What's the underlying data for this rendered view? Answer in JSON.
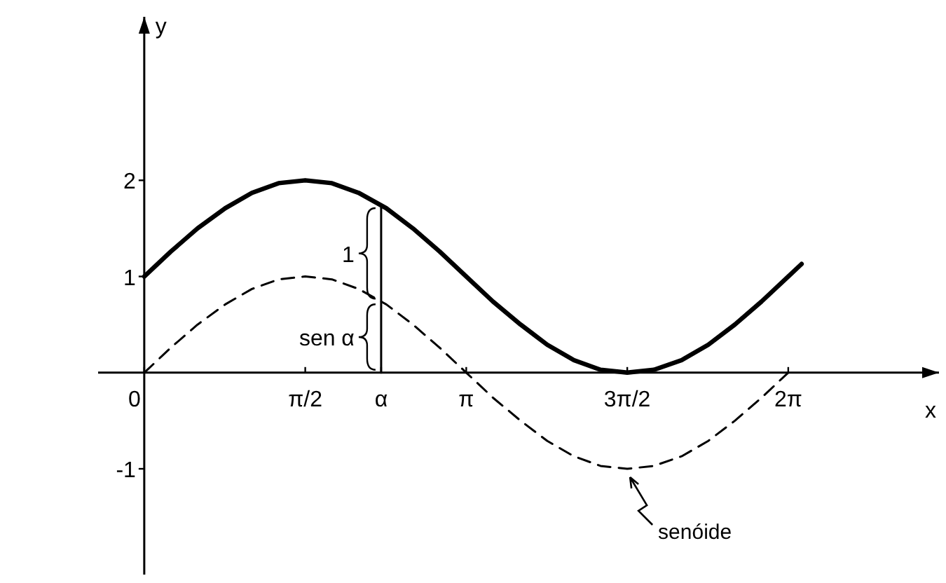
{
  "chart_data": {
    "type": "line",
    "xlabel": "x",
    "ylabel": "y",
    "xlim": [
      -0.45,
      7.75
    ],
    "ylim": [
      -2.1,
      3.7
    ],
    "xticks": [
      {
        "value": 0,
        "label": "0"
      },
      {
        "value": 1.57,
        "label": "π/2"
      },
      {
        "value": 2.31,
        "label": "α"
      },
      {
        "value": 3.14,
        "label": "π"
      },
      {
        "value": 4.71,
        "label": "3π/2"
      },
      {
        "value": 6.28,
        "label": "2π"
      }
    ],
    "yticks": [
      -1,
      1,
      2
    ],
    "grid": false,
    "marker": "none",
    "series": [
      {
        "color": "#000000",
        "line_style": "solid",
        "x": [
          0,
          0.26,
          0.52,
          0.79,
          1.05,
          1.31,
          1.57,
          1.83,
          2.09,
          2.36,
          2.62,
          2.88,
          3.14,
          3.4,
          3.67,
          3.93,
          4.19,
          4.45,
          4.71,
          4.97,
          5.24,
          5.5,
          5.76,
          6.02,
          6.28,
          6.41
        ],
        "values": [
          1,
          1.26,
          1.5,
          1.71,
          1.87,
          1.97,
          2,
          1.97,
          1.87,
          1.71,
          1.5,
          1.26,
          1,
          0.74,
          0.5,
          0.29,
          0.13,
          0.03,
          0,
          0.03,
          0.13,
          0.29,
          0.5,
          0.74,
          1,
          1.13
        ]
      },
      {
        "color": "#000000",
        "line_style": "dashed",
        "x": [
          0,
          0.26,
          0.52,
          0.79,
          1.05,
          1.31,
          1.57,
          1.83,
          2.09,
          2.36,
          2.62,
          2.88,
          3.14,
          3.4,
          3.67,
          3.93,
          4.19,
          4.45,
          4.71,
          4.97,
          5.24,
          5.5,
          5.76,
          6.02,
          6.28
        ],
        "values": [
          0,
          0.26,
          0.5,
          0.71,
          0.87,
          0.97,
          1,
          0.97,
          0.87,
          0.71,
          0.5,
          0.26,
          0,
          -0.26,
          -0.5,
          -0.71,
          -0.87,
          -0.97,
          -1,
          -0.97,
          -0.87,
          -0.71,
          -0.5,
          -0.26,
          0
        ]
      },
      {
        "color": "#000000",
        "line_style": "solid",
        "x": [
          2.31,
          2.31,
          2.31
        ],
        "values": [
          0,
          0.74,
          1.74
        ]
      }
    ],
    "annotations": [
      "1",
      "sen α",
      "senóide"
    ]
  }
}
